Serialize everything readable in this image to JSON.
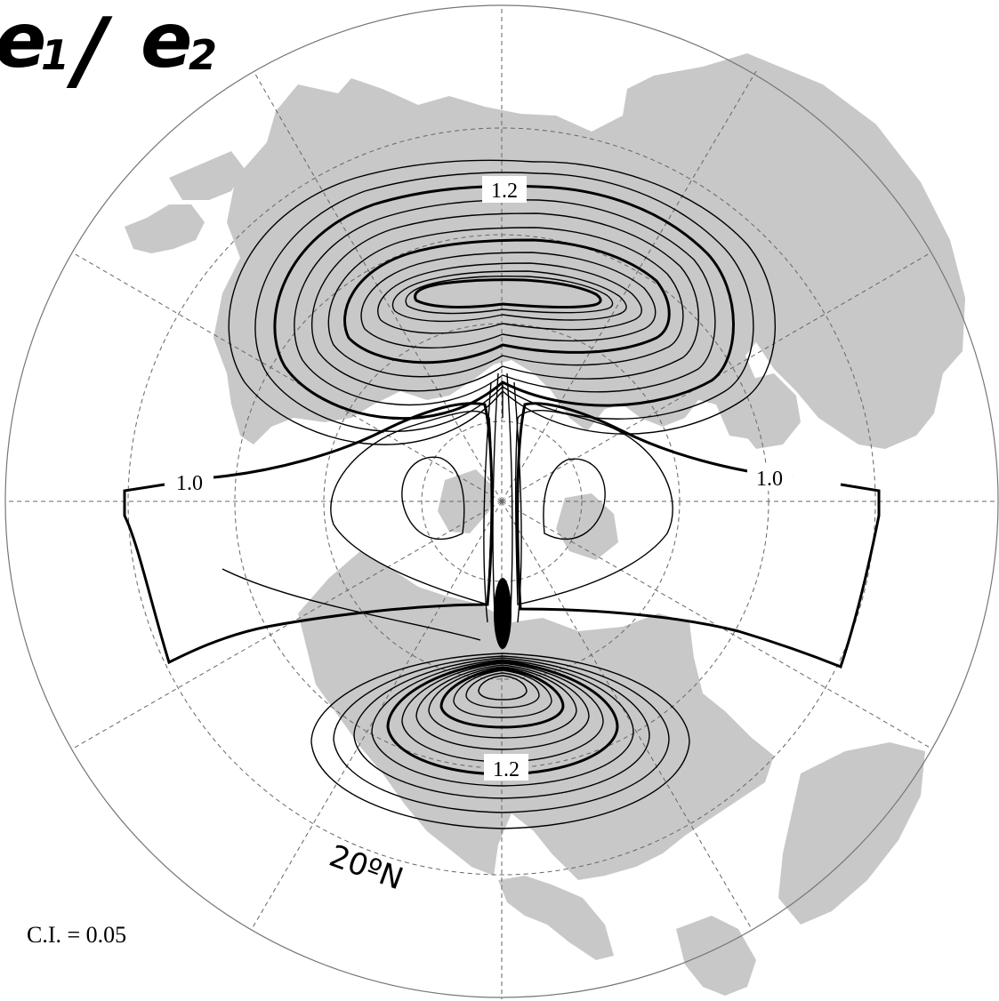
{
  "title": {
    "e1": "e",
    "s1": "1",
    "slash": "/",
    "e2": "e",
    "s2": "2"
  },
  "contour_labels": {
    "upper": "1.2",
    "left": "1.0",
    "right": "1.0",
    "lower": "1.2"
  },
  "latitude_label": "20ºN",
  "contour_interval": "C.I. = 0.05",
  "colors": {
    "land": "#c8c8c8",
    "contour": "#000000",
    "grid": "#666666"
  }
}
